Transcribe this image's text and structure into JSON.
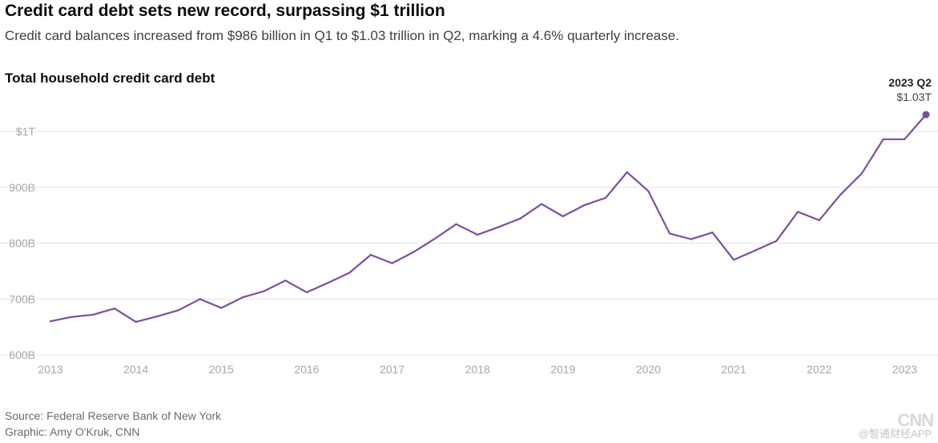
{
  "header": {
    "title": "Credit card debt sets new record, surpassing $1 trillion",
    "subtitle": "Credit card balances increased from $986 billion in Q1 to $1.03 trillion in Q2, marking a 4.6% quarterly increase."
  },
  "footer": {
    "source": "Source: Federal Reserve Bank of New York",
    "credit": "Graphic: Amy O'Kruk, CNN",
    "brand": "CNN",
    "watermark": "@智通财经APP"
  },
  "colors": {
    "line": "#7b4ea3",
    "grid": "#e6e6e6",
    "tick_text": "#a6a6a6",
    "annotation": "#222222"
  },
  "chart_data": {
    "type": "line",
    "title": "Total household credit card debt",
    "xlabel": "",
    "ylabel": "",
    "unit": "billion USD",
    "ylim": [
      600,
      1030
    ],
    "xlim": [
      2013.0,
      2023.25
    ],
    "yticks": [
      {
        "value": 600,
        "label": "600B"
      },
      {
        "value": 700,
        "label": "700B"
      },
      {
        "value": 800,
        "label": "800B"
      },
      {
        "value": 900,
        "label": "900B"
      },
      {
        "value": 1000,
        "label": "$1T"
      }
    ],
    "xticks": [
      {
        "value": 2013,
        "label": "2013"
      },
      {
        "value": 2014,
        "label": "2014"
      },
      {
        "value": 2015,
        "label": "2015"
      },
      {
        "value": 2016,
        "label": "2016"
      },
      {
        "value": 2017,
        "label": "2017"
      },
      {
        "value": 2018,
        "label": "2018"
      },
      {
        "value": 2019,
        "label": "2019"
      },
      {
        "value": 2020,
        "label": "2020"
      },
      {
        "value": 2021,
        "label": "2021"
      },
      {
        "value": 2022,
        "label": "2022"
      },
      {
        "value": 2023,
        "label": "2023"
      }
    ],
    "grid": true,
    "series": [
      {
        "name": "Total household credit card debt",
        "points": [
          {
            "x": 2013.0,
            "y": 660
          },
          {
            "x": 2013.25,
            "y": 668
          },
          {
            "x": 2013.5,
            "y": 672
          },
          {
            "x": 2013.75,
            "y": 683
          },
          {
            "x": 2014.0,
            "y": 659
          },
          {
            "x": 2014.25,
            "y": 669
          },
          {
            "x": 2014.5,
            "y": 680
          },
          {
            "x": 2014.75,
            "y": 700
          },
          {
            "x": 2015.0,
            "y": 684
          },
          {
            "x": 2015.25,
            "y": 703
          },
          {
            "x": 2015.5,
            "y": 714
          },
          {
            "x": 2015.75,
            "y": 733
          },
          {
            "x": 2016.0,
            "y": 712
          },
          {
            "x": 2016.25,
            "y": 729
          },
          {
            "x": 2016.5,
            "y": 747
          },
          {
            "x": 2016.75,
            "y": 779
          },
          {
            "x": 2017.0,
            "y": 764
          },
          {
            "x": 2017.25,
            "y": 784
          },
          {
            "x": 2017.5,
            "y": 808
          },
          {
            "x": 2017.75,
            "y": 834
          },
          {
            "x": 2018.0,
            "y": 815
          },
          {
            "x": 2018.25,
            "y": 829
          },
          {
            "x": 2018.5,
            "y": 844
          },
          {
            "x": 2018.75,
            "y": 870
          },
          {
            "x": 2019.0,
            "y": 848
          },
          {
            "x": 2019.25,
            "y": 868
          },
          {
            "x": 2019.5,
            "y": 881
          },
          {
            "x": 2019.75,
            "y": 927
          },
          {
            "x": 2020.0,
            "y": 893
          },
          {
            "x": 2020.25,
            "y": 817
          },
          {
            "x": 2020.5,
            "y": 807
          },
          {
            "x": 2020.75,
            "y": 819
          },
          {
            "x": 2021.0,
            "y": 770
          },
          {
            "x": 2021.25,
            "y": 787
          },
          {
            "x": 2021.5,
            "y": 804
          },
          {
            "x": 2021.75,
            "y": 856
          },
          {
            "x": 2022.0,
            "y": 841
          },
          {
            "x": 2022.25,
            "y": 887
          },
          {
            "x": 2022.5,
            "y": 925
          },
          {
            "x": 2022.75,
            "y": 986
          },
          {
            "x": 2023.0,
            "y": 986
          },
          {
            "x": 2023.25,
            "y": 1030
          }
        ]
      }
    ],
    "annotation": {
      "x": 2023.25,
      "y": 1030,
      "period": "2023 Q2",
      "value": "$1.03T"
    }
  }
}
